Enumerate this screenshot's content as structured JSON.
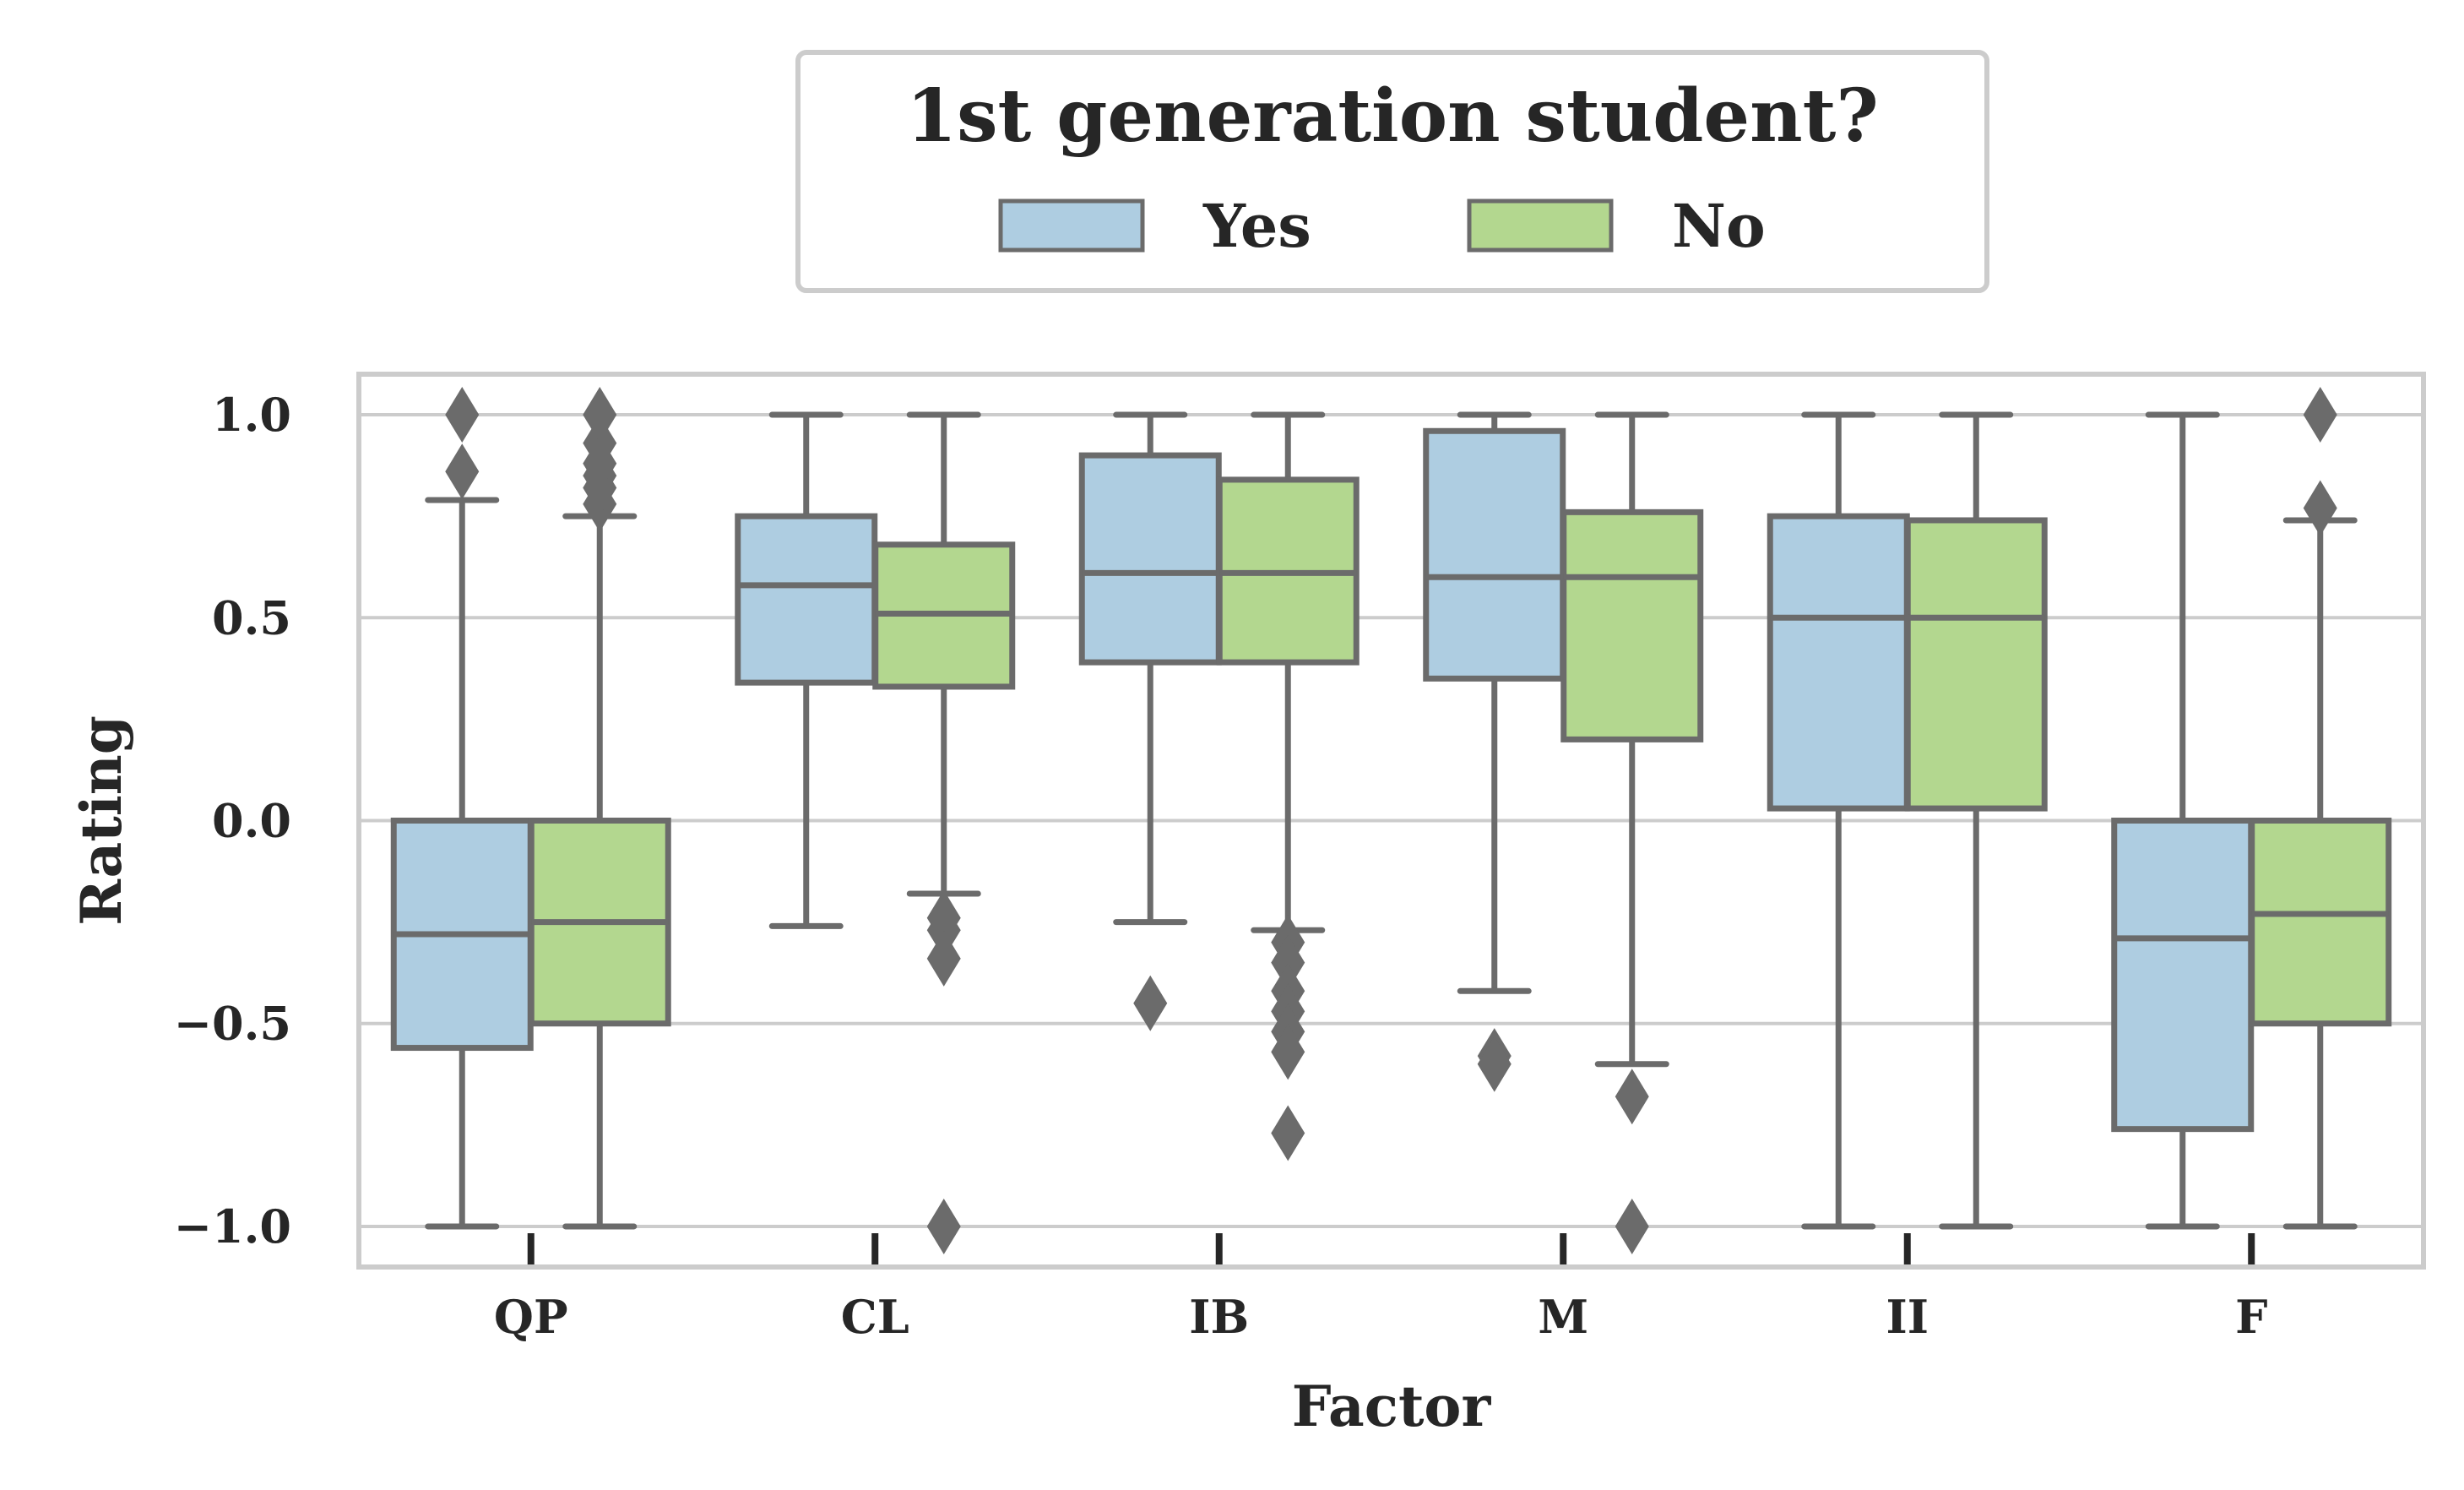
{
  "chart_data": {
    "type": "box",
    "xlabel": "Factor",
    "ylabel": "Rating",
    "categories": [
      "QP",
      "CL",
      "IB",
      "M",
      "II",
      "F"
    ],
    "ylim": [
      -1.1,
      1.1
    ],
    "yticks": [
      -1.0,
      -0.5,
      0.0,
      0.5,
      1.0
    ],
    "ytick_labels": [
      "−1.0",
      "−0.5",
      "0.0",
      "0.5",
      "1.0"
    ],
    "grid": true,
    "legend": {
      "title": "1st generation student?",
      "placement": "top-center",
      "entries": [
        "Yes",
        "No"
      ]
    },
    "colors": {
      "Yes": "#aecde1",
      "No": "#b3d78f",
      "stroke": "#6b6b6b",
      "grid": "#cccccc",
      "frame": "#cccccc"
    },
    "series": [
      {
        "name": "Yes",
        "boxes": [
          {
            "category": "QP",
            "whisker_low": -1.0,
            "q1": -0.56,
            "median": -0.28,
            "q3": 0.0,
            "whisker_high": 0.79,
            "outliers": [
              0.86,
              1.0
            ]
          },
          {
            "category": "CL",
            "whisker_low": -0.26,
            "q1": 0.34,
            "median": 0.58,
            "q3": 0.75,
            "whisker_high": 1.0,
            "outliers": []
          },
          {
            "category": "IB",
            "whisker_low": -0.25,
            "q1": 0.39,
            "median": 0.61,
            "q3": 0.9,
            "whisker_high": 1.0,
            "outliers": [
              -0.45
            ]
          },
          {
            "category": "M",
            "whisker_low": -0.42,
            "q1": 0.35,
            "median": 0.6,
            "q3": 0.96,
            "whisker_high": 1.0,
            "outliers": [
              -0.58,
              -0.6
            ]
          },
          {
            "category": "II",
            "whisker_low": -1.0,
            "q1": 0.03,
            "median": 0.5,
            "q3": 0.75,
            "whisker_high": 1.0,
            "outliers": []
          },
          {
            "category": "F",
            "whisker_low": -1.0,
            "q1": -0.76,
            "median": -0.29,
            "q3": 0.0,
            "whisker_high": 1.0,
            "outliers": []
          }
        ]
      },
      {
        "name": "No",
        "boxes": [
          {
            "category": "QP",
            "whisker_low": -1.0,
            "q1": -0.5,
            "median": -0.25,
            "q3": 0.0,
            "whisker_high": 0.75,
            "outliers": [
              0.78,
              0.82,
              0.85,
              0.88,
              0.93,
              1.0
            ]
          },
          {
            "category": "CL",
            "whisker_low": -0.18,
            "q1": 0.33,
            "median": 0.51,
            "q3": 0.68,
            "whisker_high": 1.0,
            "outliers": [
              -0.24,
              -0.27,
              -0.34,
              -1.0
            ]
          },
          {
            "category": "IB",
            "whisker_low": -0.27,
            "q1": 0.39,
            "median": 0.61,
            "q3": 0.84,
            "whisker_high": 1.0,
            "outliers": [
              -0.3,
              -0.35,
              -0.42,
              -0.47,
              -0.52,
              -0.57,
              -0.77
            ]
          },
          {
            "category": "M",
            "whisker_low": -0.6,
            "q1": 0.2,
            "median": 0.6,
            "q3": 0.76,
            "whisker_high": 1.0,
            "outliers": [
              -0.68,
              -1.0
            ]
          },
          {
            "category": "II",
            "whisker_low": -1.0,
            "q1": 0.03,
            "median": 0.5,
            "q3": 0.74,
            "whisker_high": 1.0,
            "outliers": []
          },
          {
            "category": "F",
            "whisker_low": -1.0,
            "q1": -0.5,
            "median": -0.23,
            "q3": 0.0,
            "whisker_high": 0.74,
            "outliers": [
              0.77,
              1.0
            ]
          }
        ]
      }
    ]
  }
}
